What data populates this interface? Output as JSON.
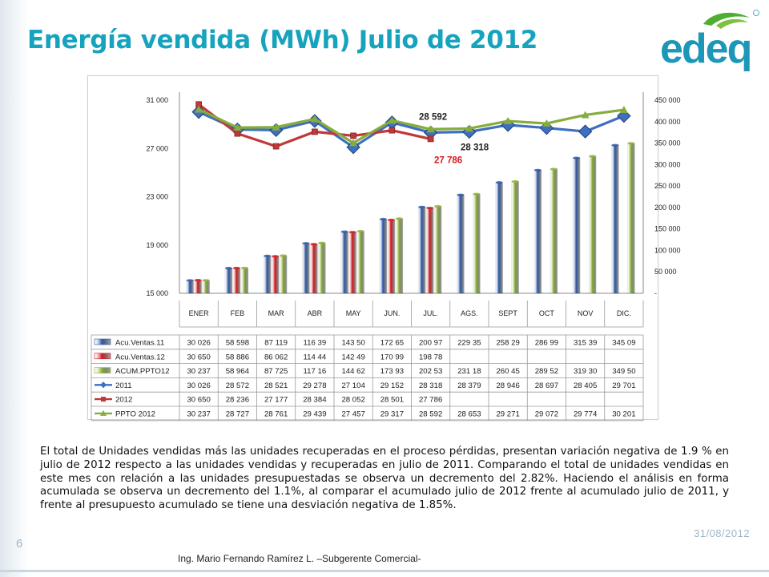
{
  "slide": {
    "title": "Energía vendida (MWh) Julio de 2012",
    "logo_text": "edeq",
    "paragraph": "El total de Unidades vendidas más las unidades recuperadas en el proceso pérdidas, presentan variación negativa de 1.9 % en julio de 2012 respecto a las unidades vendidas y recuperadas en julio de 2011. Comparando el total de unidades vendidas en este mes con relación a las unidades presupuestadas se observa un decremento del 2.82%. Haciendo el análisis en forma acumulada se observa un decremento del 1.1%, al comparar el acumulado julio de 2012 frente al acumulado julio de 2011, y frente al presupuesto acumulado se tiene una desviación negativa de 1.85%.",
    "slide_number": "6",
    "date": "31/08/2012",
    "footer": "Ing. Mario Fernando Ramírez L. –Subgerente Comercial-",
    "colors": {
      "title": "#16a3bd",
      "logo_green": "#4fae32",
      "logo_teal": "#1d97b8"
    }
  },
  "chart_data": {
    "type": "bar",
    "categories": [
      "ENER",
      "FEB",
      "MAR",
      "ABR",
      "MAY",
      "JUN.",
      "JUL.",
      "AGS.",
      "SEPT",
      "OCT",
      "NOV",
      "DIC."
    ],
    "left_axis": {
      "min": 15000,
      "max": 31000,
      "ticks": [
        "15 000",
        "19 000",
        "23 000",
        "27 000",
        "31 000"
      ]
    },
    "right_axis": {
      "min": 0,
      "max": 450000,
      "ticks": [
        "-",
        "50 000",
        "100 000",
        "150 000",
        "200 000",
        "250 000",
        "300 000",
        "350 000",
        "400 000",
        "450 000"
      ]
    },
    "bar_series": [
      {
        "name": "Acu.Ventas.11",
        "color": "#2e5aa8",
        "values": [
          30026,
          58598,
          87119,
          116390,
          143500,
          172650,
          200970,
          229350,
          258290,
          286990,
          315390,
          345090
        ],
        "labels": [
          "30 026",
          "58 598",
          "87 119",
          "116 39",
          "143 50",
          "172 65",
          "200 97",
          "229 35",
          "258 29",
          "286 99",
          "315 39",
          "345 09"
        ]
      },
      {
        "name": "Acu.Ventas.12",
        "color": "#d6191e",
        "values": [
          30650,
          58886,
          86062,
          114440,
          142490,
          170990,
          198780,
          null,
          null,
          null,
          null,
          null
        ],
        "labels": [
          "30 650",
          "58 886",
          "86 062",
          "114 44",
          "142 49",
          "170 99",
          "198 78",
          "",
          "",
          "",
          "",
          ""
        ]
      },
      {
        "name": "ACUM.PPTO12",
        "color": "#8cb33a",
        "values": [
          30237,
          58964,
          87725,
          117160,
          144620,
          173930,
          202530,
          231180,
          260450,
          289520,
          319300,
          349500
        ],
        "labels": [
          "30 237",
          "58 964",
          "87 725",
          "117 16",
          "144 62",
          "173 93",
          "202 53",
          "231 18",
          "260 45",
          "289 52",
          "319 30",
          "349 50"
        ]
      }
    ],
    "line_series": [
      {
        "name": "2011",
        "color": "#3e6fc0",
        "marker": "diamond",
        "values": [
          30026,
          28572,
          28521,
          29278,
          27104,
          29152,
          28318,
          28379,
          28946,
          28697,
          28405,
          29701
        ],
        "labels": [
          "30 026",
          "28 572",
          "28 521",
          "29 278",
          "27 104",
          "29 152",
          "28 318",
          "28 379",
          "28 946",
          "28 697",
          "28 405",
          "29 701"
        ]
      },
      {
        "name": "2012",
        "color": "#c0393a",
        "marker": "square",
        "values": [
          30650,
          28236,
          27177,
          28384,
          28052,
          28501,
          27786,
          null,
          null,
          null,
          null,
          null
        ],
        "labels": [
          "30 650",
          "28 236",
          "27 177",
          "28 384",
          "28 052",
          "28 501",
          "27 786",
          "",
          "",
          "",
          "",
          ""
        ]
      },
      {
        "name": "PPTO 2012",
        "color": "#86ad3c",
        "marker": "triangle",
        "values": [
          30237,
          28727,
          28761,
          29439,
          27457,
          29317,
          28592,
          28653,
          29271,
          29072,
          29774,
          30201
        ],
        "labels": [
          "30 237",
          "28 727",
          "28 761",
          "29 439",
          "27 457",
          "29 317",
          "28 592",
          "28 653",
          "29 271",
          "29 072",
          "29 774",
          "30 201"
        ]
      }
    ],
    "annotations": [
      {
        "text": "28 592",
        "color": "#222222"
      },
      {
        "text": "28 318",
        "color": "#222222"
      },
      {
        "text": "27 786",
        "color": "#d6191e"
      }
    ],
    "data_table": true,
    "grid": false
  }
}
